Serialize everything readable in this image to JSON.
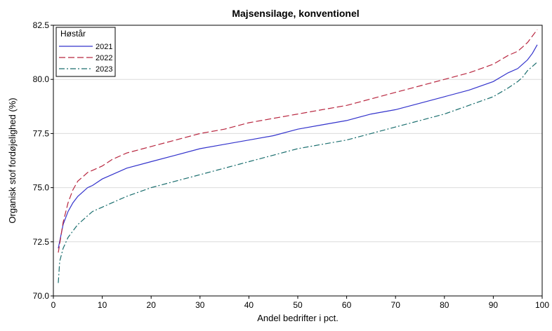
{
  "chart_data": {
    "type": "line",
    "title": "Majsensilage, konventionel",
    "xlabel": "Andel bedrifter i pct.",
    "ylabel": "Organisk stof fordøjelighed (%)",
    "xlim": [
      0,
      100
    ],
    "ylim": [
      70.0,
      82.5
    ],
    "xticks": [
      0,
      10,
      20,
      30,
      40,
      50,
      60,
      70,
      80,
      90,
      100
    ],
    "yticks": [
      70.0,
      72.5,
      75.0,
      77.5,
      80.0,
      82.5
    ],
    "xtick_labels": [
      "0",
      "10",
      "20",
      "30",
      "40",
      "50",
      "60",
      "70",
      "80",
      "90",
      "100"
    ],
    "ytick_labels": [
      "70.0",
      "72.5",
      "75.0",
      "77.5",
      "80.0",
      "82.5"
    ],
    "grid": "horizontal",
    "legend": {
      "title": "Høstår",
      "position": "top-left",
      "entries": [
        "2021",
        "2022",
        "2023"
      ]
    },
    "series": [
      {
        "name": "2021",
        "color": "#3333cc",
        "dash": "solid",
        "x": [
          1,
          2,
          3,
          4,
          5,
          6,
          7,
          8,
          10,
          12,
          15,
          20,
          25,
          30,
          35,
          40,
          45,
          50,
          55,
          60,
          65,
          70,
          75,
          80,
          85,
          90,
          93,
          95,
          96,
          97,
          98,
          99
        ],
        "y": [
          72.2,
          73.3,
          73.9,
          74.3,
          74.6,
          74.8,
          75.0,
          75.1,
          75.4,
          75.6,
          75.9,
          76.2,
          76.5,
          76.8,
          77.0,
          77.2,
          77.4,
          77.7,
          77.9,
          78.1,
          78.4,
          78.6,
          78.9,
          79.2,
          79.5,
          79.9,
          80.3,
          80.5,
          80.7,
          80.9,
          81.2,
          81.6
        ]
      },
      {
        "name": "2022",
        "color": "#b8263f",
        "dash": "long-dash",
        "x": [
          1,
          2,
          3,
          4,
          5,
          6,
          7,
          8,
          10,
          12,
          15,
          20,
          25,
          30,
          35,
          40,
          45,
          50,
          55,
          60,
          65,
          70,
          75,
          80,
          85,
          90,
          93,
          95,
          96,
          97,
          98,
          99
        ],
        "y": [
          72.0,
          73.4,
          74.3,
          74.9,
          75.3,
          75.5,
          75.7,
          75.8,
          76.0,
          76.3,
          76.6,
          76.9,
          77.2,
          77.5,
          77.7,
          78.0,
          78.2,
          78.4,
          78.6,
          78.8,
          79.1,
          79.4,
          79.7,
          80.0,
          80.3,
          80.7,
          81.1,
          81.3,
          81.5,
          81.7,
          82.0,
          82.3
        ]
      },
      {
        "name": "2023",
        "color": "#1a6e6e",
        "dash": "dash-dot",
        "x": [
          1,
          1.3,
          2,
          3,
          4,
          5,
          6,
          7,
          8,
          10,
          12,
          15,
          20,
          25,
          30,
          35,
          40,
          45,
          50,
          55,
          60,
          65,
          70,
          75,
          80,
          85,
          90,
          93,
          95,
          96,
          97,
          98,
          99
        ],
        "y": [
          70.6,
          71.6,
          72.2,
          72.7,
          73.0,
          73.3,
          73.5,
          73.7,
          73.9,
          74.1,
          74.3,
          74.6,
          75.0,
          75.3,
          75.6,
          75.9,
          76.2,
          76.5,
          76.8,
          77.0,
          77.2,
          77.5,
          77.8,
          78.1,
          78.4,
          78.8,
          79.2,
          79.6,
          79.9,
          80.1,
          80.4,
          80.6,
          80.8
        ]
      }
    ]
  }
}
